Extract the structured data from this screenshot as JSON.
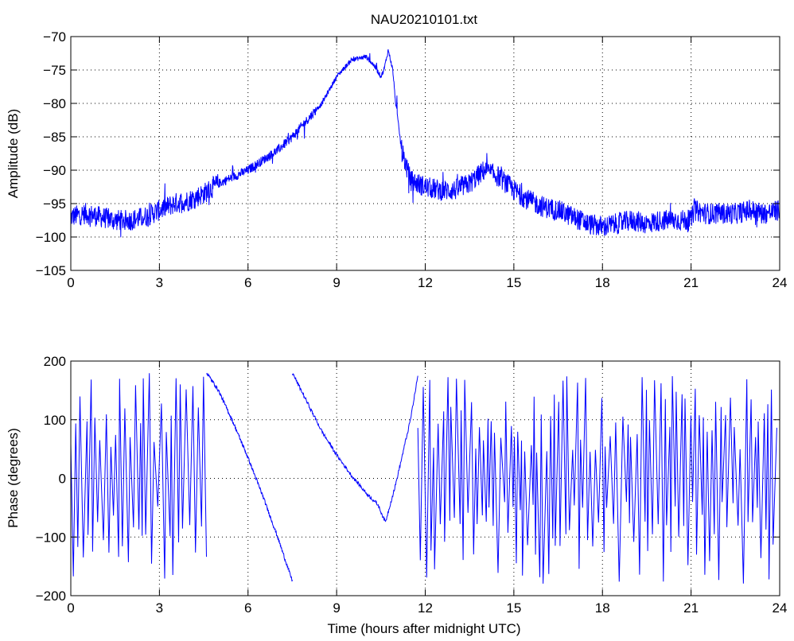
{
  "figure_title": "NAU20210101.txt",
  "chart_data": [
    {
      "type": "line",
      "title": "NAU20210101.txt",
      "xlabel": "",
      "ylabel": "Amplitude (dB)",
      "xlim": [
        0,
        24
      ],
      "ylim": [
        -105,
        -70
      ],
      "xticks": [
        0,
        3,
        6,
        9,
        12,
        15,
        18,
        21,
        24
      ],
      "yticks": [
        -105,
        -100,
        -95,
        -90,
        -85,
        -80,
        -75,
        -70
      ],
      "grid": true,
      "line_color": "#0000ff",
      "x": [
        0,
        0.5,
        1,
        1.5,
        2,
        2.5,
        3,
        3.5,
        4,
        4.5,
        5,
        5.5,
        6,
        6.5,
        7,
        7.5,
        8,
        8.5,
        9,
        9.5,
        10,
        10.3,
        10.5,
        10.6,
        10.75,
        10.9,
        11,
        11.2,
        11.5,
        12,
        12.5,
        13,
        13.5,
        14,
        14.5,
        15,
        15.5,
        16,
        16.5,
        17,
        17.5,
        18,
        18.5,
        19,
        19.5,
        20,
        20.5,
        21,
        21.1,
        21.5,
        22,
        22.5,
        23,
        23.5,
        24
      ],
      "y": [
        -97,
        -96.5,
        -97,
        -97.5,
        -97.5,
        -97,
        -96,
        -95,
        -94.5,
        -93.5,
        -92,
        -91,
        -90,
        -88.5,
        -87,
        -85,
        -82.5,
        -80,
        -76,
        -73.5,
        -73,
        -74.5,
        -76,
        -75,
        -72,
        -75,
        -80,
        -87,
        -91.5,
        -92.5,
        -93,
        -93,
        -92,
        -90,
        -91,
        -93,
        -94.5,
        -95.5,
        -96,
        -97,
        -98,
        -98.5,
        -98,
        -97.5,
        -98,
        -97.5,
        -97.5,
        -97.5,
        -96,
        -96.5,
        -96.5,
        -96.5,
        -96,
        -96.5,
        -96
      ],
      "noise_amplitude_db": 1.6
    },
    {
      "type": "line",
      "title": "",
      "xlabel": "Time (hours after midnight UTC)",
      "ylabel": "Phase (degrees)",
      "xlim": [
        0,
        24
      ],
      "ylim": [
        -200,
        200
      ],
      "xticks": [
        0,
        3,
        6,
        9,
        12,
        15,
        18,
        21,
        24
      ],
      "yticks": [
        -200,
        -100,
        0,
        100,
        200
      ],
      "grid": true,
      "line_color": "#0000ff",
      "smooth_segments": [
        {
          "x": [
            4.6,
            5.0,
            5.5,
            6.0,
            6.5,
            7.0,
            7.5
          ],
          "y": [
            180,
            150,
            95,
            35,
            -30,
            -100,
            -175
          ]
        },
        {
          "x": [
            7.5,
            8.0,
            8.5,
            9.0,
            9.5,
            10.0,
            10.4,
            10.65,
            11.0,
            11.5,
            11.75
          ],
          "y": [
            180,
            130,
            80,
            40,
            5,
            -25,
            -45,
            -75,
            -10,
            100,
            175
          ]
        }
      ],
      "noisy_intervals": [
        [
          0,
          4.6
        ],
        [
          11.75,
          24
        ]
      ],
      "phase_range": [
        -180,
        180
      ]
    }
  ]
}
